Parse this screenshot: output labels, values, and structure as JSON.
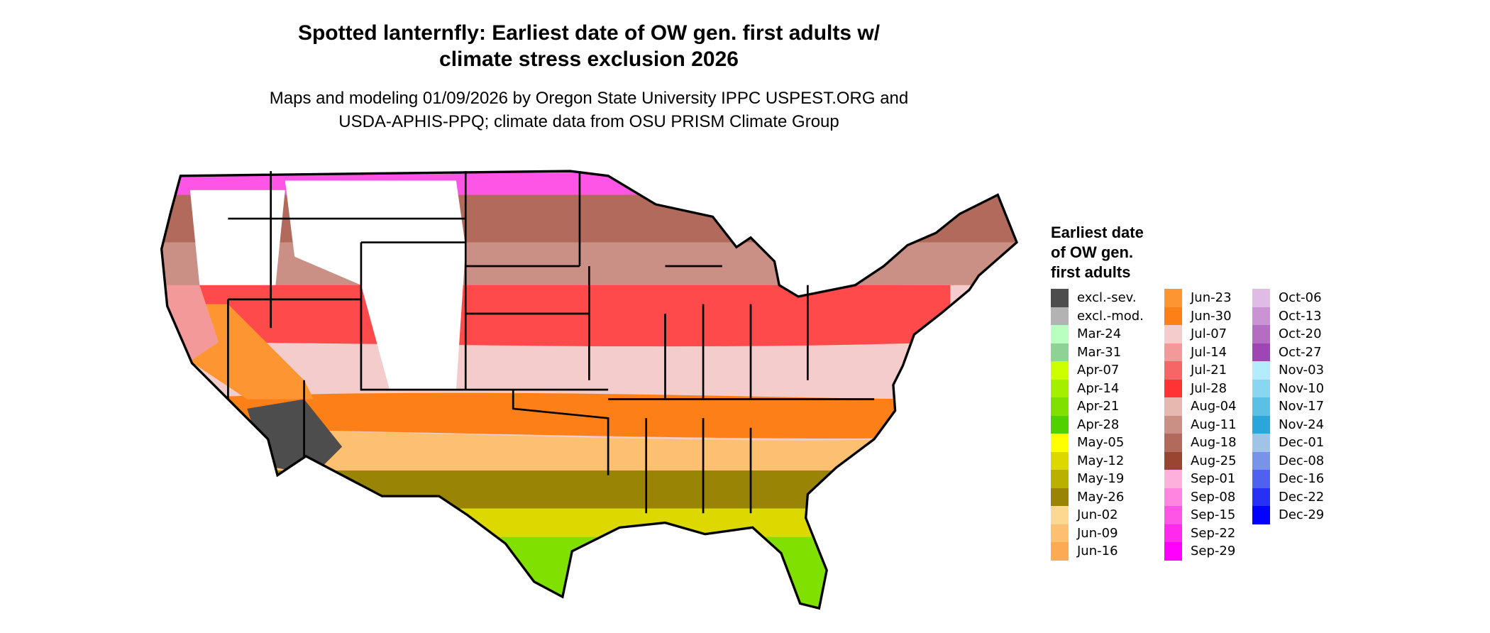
{
  "title": {
    "line1": "Spotted lanternfly: Earliest date of OW gen. first adults w/",
    "line2": "climate stress exclusion 2026"
  },
  "subtitle": {
    "line1": "Maps and modeling 01/09/2026 by Oregon State University IPPC USPEST.ORG and",
    "line2": "USDA-APHIS-PPQ; climate data from OSU PRISM Climate Group"
  },
  "legend": {
    "title": {
      "line1": "Earliest date",
      "line2": "of OW gen.",
      "line3": "first adults"
    },
    "columns": [
      [
        {
          "label": "excl.-sev.",
          "color": "#4d4d4d"
        },
        {
          "label": "excl.-mod.",
          "color": "#b3b3b3"
        },
        {
          "label": "Mar-24",
          "color": "#b8ffc0"
        },
        {
          "label": "Mar-31",
          "color": "#8ed295"
        },
        {
          "label": "Apr-07",
          "color": "#ccff00"
        },
        {
          "label": "Apr-14",
          "color": "#a4ef00"
        },
        {
          "label": "Apr-21",
          "color": "#80e000"
        },
        {
          "label": "Apr-28",
          "color": "#52d100"
        },
        {
          "label": "May-05",
          "color": "#ffff00"
        },
        {
          "label": "May-12",
          "color": "#dcd800"
        },
        {
          "label": "May-19",
          "color": "#bab000"
        },
        {
          "label": "May-26",
          "color": "#998405"
        },
        {
          "label": "Jun-02",
          "color": "#fdd890"
        },
        {
          "label": "Jun-09",
          "color": "#fdc070"
        },
        {
          "label": "Jun-16",
          "color": "#fdaa55"
        }
      ],
      [
        {
          "label": "Jun-23",
          "color": "#fd9530"
        },
        {
          "label": "Jun-30",
          "color": "#fd7f18"
        },
        {
          "label": "Jul-07",
          "color": "#f4cccc"
        },
        {
          "label": "Jul-14",
          "color": "#f39999"
        },
        {
          "label": "Jul-21",
          "color": "#f66666"
        },
        {
          "label": "Jul-28",
          "color": "#ff3333"
        },
        {
          "label": "Aug-04",
          "color": "#e6b8b0"
        },
        {
          "label": "Aug-11",
          "color": "#cb9085"
        },
        {
          "label": "Aug-18",
          "color": "#b26a5c"
        },
        {
          "label": "Aug-25",
          "color": "#9a4432"
        },
        {
          "label": "Sep-01",
          "color": "#fdb0dc"
        },
        {
          "label": "Sep-08",
          "color": "#ff85e0"
        },
        {
          "label": "Sep-15",
          "color": "#ff55e6"
        },
        {
          "label": "Sep-22",
          "color": "#ff2aee"
        },
        {
          "label": "Sep-29",
          "color": "#ff00ff"
        }
      ],
      [
        {
          "label": "Oct-06",
          "color": "#e0bce4"
        },
        {
          "label": "Oct-13",
          "color": "#ca93d3"
        },
        {
          "label": "Oct-20",
          "color": "#b46dc2"
        },
        {
          "label": "Oct-27",
          "color": "#9e47b4"
        },
        {
          "label": "Nov-03",
          "color": "#b3ecff"
        },
        {
          "label": "Nov-10",
          "color": "#88d6f2"
        },
        {
          "label": "Nov-17",
          "color": "#5bbfe6"
        },
        {
          "label": "Nov-24",
          "color": "#2ba6da"
        },
        {
          "label": "Dec-01",
          "color": "#a0c4e8"
        },
        {
          "label": "Dec-08",
          "color": "#7893ea"
        },
        {
          "label": "Dec-16",
          "color": "#4f61f0"
        },
        {
          "label": "Dec-22",
          "color": "#282ff6"
        },
        {
          "label": "Dec-29",
          "color": "#0000ff"
        }
      ]
    ]
  },
  "map": {
    "outline_color": "#000000",
    "unmodeled_color": "#ffffff"
  }
}
